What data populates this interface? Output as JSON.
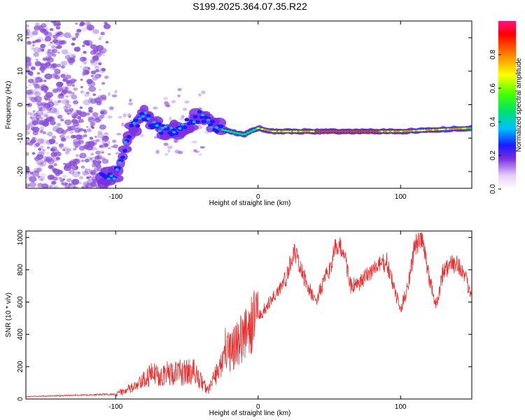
{
  "title": "S199.2025.364.07.35.R22",
  "colors": {
    "snr_line": "#e83030",
    "speckle": "#8a4fd6",
    "frame": "#000000"
  },
  "chart_data": [
    {
      "type": "heatmap",
      "name": "spectrogram",
      "xlabel": "Height of straight line (km)",
      "ylabel": "Frequency (Hz)",
      "xlim": [
        -163,
        150
      ],
      "ylim": [
        -25,
        25
      ],
      "x_ticks": [
        -100,
        0,
        100
      ],
      "y_ticks": [
        20,
        10,
        0,
        -10,
        -20
      ],
      "x_tick_labels": [
        "-100",
        "0",
        "100"
      ],
      "y_tick_labels": [
        "20",
        "10",
        "0",
        "-10",
        "-20"
      ],
      "colorbar": {
        "label": "Normalized spectral amplitude",
        "range": [
          0.0,
          1.0
        ],
        "ticks": [
          0.0,
          0.2,
          0.4,
          0.6,
          0.8
        ],
        "tick_labels": [
          "0.0",
          "0.2",
          "0.4",
          "0.6",
          "0.8"
        ]
      },
      "ridge": [
        {
          "x": -110,
          "y": -22
        },
        {
          "x": -100,
          "y": -21
        },
        {
          "x": -90,
          "y": -8
        },
        {
          "x": -80,
          "y": -3
        },
        {
          "x": -70,
          "y": -7
        },
        {
          "x": -60,
          "y": -8
        },
        {
          "x": -50,
          "y": -6
        },
        {
          "x": -40,
          "y": -3
        },
        {
          "x": -30,
          "y": -7
        },
        {
          "x": -20,
          "y": -8
        },
        {
          "x": -10,
          "y": -9
        },
        {
          "x": 0,
          "y": -7
        },
        {
          "x": 10,
          "y": -8
        },
        {
          "x": 50,
          "y": -8
        },
        {
          "x": 100,
          "y": -8
        },
        {
          "x": 150,
          "y": -7
        }
      ]
    },
    {
      "type": "line",
      "name": "snr",
      "xlabel": "Height of straight line (km)",
      "ylabel": "SNR (10 * v/v)",
      "xlim": [
        -163,
        150
      ],
      "ylim": [
        0,
        1040
      ],
      "x_ticks": [
        -100,
        0,
        100
      ],
      "y_ticks": [
        0,
        200,
        400,
        600,
        800,
        1000
      ],
      "x_tick_labels": [
        "-100",
        "0",
        "100"
      ],
      "y_tick_labels": [
        "0",
        "200",
        "400",
        "600",
        "800",
        "1000"
      ],
      "envelope": {
        "x": [
          -163,
          -120,
          -100,
          -85,
          -75,
          -60,
          -45,
          -35,
          -25,
          -15,
          -5,
          0,
          10,
          20,
          25,
          30,
          40,
          50,
          55,
          60,
          65,
          70,
          80,
          90,
          100,
          105,
          110,
          115,
          120,
          125,
          130,
          140,
          150
        ],
        "y": [
          15,
          25,
          30,
          80,
          150,
          160,
          170,
          50,
          250,
          350,
          450,
          500,
          620,
          750,
          920,
          800,
          600,
          800,
          950,
          920,
          700,
          700,
          800,
          850,
          550,
          700,
          950,
          1000,
          750,
          580,
          800,
          850,
          650
        ]
      }
    }
  ]
}
